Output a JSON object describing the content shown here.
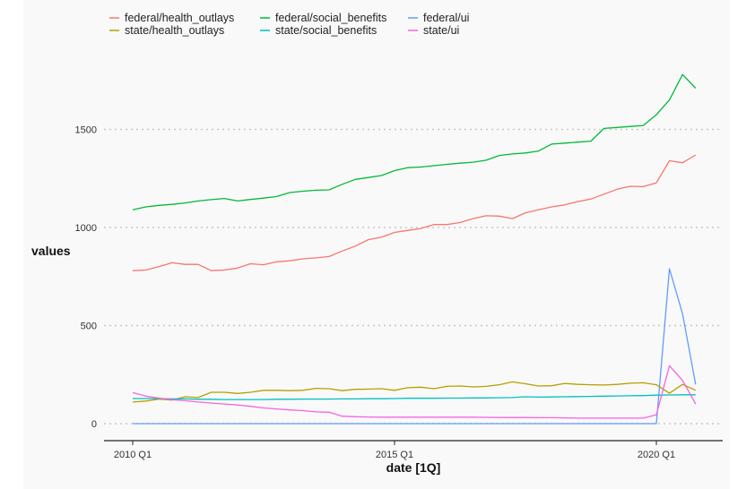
{
  "chart_data": {
    "type": "line",
    "title": "",
    "xlabel": "date [1Q]",
    "ylabel": "values",
    "x": [
      "2010 Q1",
      "2010 Q2",
      "2010 Q3",
      "2010 Q4",
      "2011 Q1",
      "2011 Q2",
      "2011 Q3",
      "2011 Q4",
      "2012 Q1",
      "2012 Q2",
      "2012 Q3",
      "2012 Q4",
      "2013 Q1",
      "2013 Q2",
      "2013 Q3",
      "2013 Q4",
      "2014 Q1",
      "2014 Q2",
      "2014 Q3",
      "2014 Q4",
      "2015 Q1",
      "2015 Q2",
      "2015 Q3",
      "2015 Q4",
      "2016 Q1",
      "2016 Q2",
      "2016 Q3",
      "2016 Q4",
      "2017 Q1",
      "2017 Q2",
      "2017 Q3",
      "2017 Q4",
      "2018 Q1",
      "2018 Q2",
      "2018 Q3",
      "2018 Q4",
      "2019 Q1",
      "2019 Q2",
      "2019 Q3",
      "2019 Q4",
      "2020 Q1",
      "2020 Q2",
      "2020 Q3",
      "2020 Q4"
    ],
    "x_ticks": [
      "2010 Q1",
      "2015 Q1",
      "2020 Q1"
    ],
    "y_ticks": [
      0,
      500,
      1000,
      1500
    ],
    "ylim": [
      -50,
      1800
    ],
    "grid": "horizontal dotted",
    "legend": "top-left",
    "series": [
      {
        "name": "federal/health_outlays",
        "color": "#F8766D",
        "values": [
          780,
          783,
          800,
          820,
          812,
          812,
          780,
          783,
          793,
          815,
          810,
          825,
          830,
          840,
          845,
          852,
          880,
          905,
          938,
          950,
          975,
          985,
          995,
          1015,
          1015,
          1025,
          1045,
          1060,
          1058,
          1045,
          1075,
          1090,
          1105,
          1115,
          1132,
          1145,
          1170,
          1195,
          1210,
          1208,
          1228,
          1340,
          1330,
          1370
        ]
      },
      {
        "name": "federal/social_benefits",
        "color": "#00BA38",
        "values": [
          1090,
          1105,
          1113,
          1118,
          1125,
          1135,
          1142,
          1148,
          1135,
          1143,
          1150,
          1158,
          1178,
          1185,
          1190,
          1192,
          1220,
          1245,
          1255,
          1265,
          1290,
          1305,
          1308,
          1315,
          1322,
          1328,
          1333,
          1343,
          1367,
          1375,
          1380,
          1390,
          1425,
          1430,
          1435,
          1440,
          1505,
          1510,
          1515,
          1520,
          1575,
          1650,
          1780,
          1710
        ]
      },
      {
        "name": "federal/ui",
        "color": "#619CFF",
        "values": [
          0,
          0,
          0,
          0,
          0,
          0,
          0,
          0,
          0,
          0,
          0,
          0,
          0,
          0,
          0,
          0,
          0,
          0,
          0,
          0,
          0,
          0,
          0,
          0,
          0,
          0,
          0,
          0,
          0,
          0,
          0,
          0,
          0,
          0,
          0,
          0,
          0,
          0,
          0,
          0,
          0,
          790,
          560,
          200
        ]
      },
      {
        "name": "state/health_outlays",
        "color": "#B79F00",
        "values": [
          110,
          115,
          125,
          120,
          137,
          133,
          160,
          160,
          154,
          160,
          170,
          170,
          168,
          170,
          180,
          178,
          168,
          175,
          176,
          178,
          170,
          183,
          186,
          178,
          190,
          192,
          187,
          190,
          198,
          213,
          203,
          192,
          193,
          205,
          200,
          198,
          197,
          200,
          206,
          208,
          198,
          155,
          200,
          170
        ]
      },
      {
        "name": "state/social_benefits",
        "color": "#00BFC4",
        "values": [
          128,
          128,
          128,
          126,
          126,
          124,
          124,
          123,
          123,
          123,
          123,
          124,
          124,
          125,
          125,
          125,
          126,
          126,
          127,
          127,
          128,
          129,
          129,
          129,
          130,
          130,
          131,
          131,
          132,
          133,
          137,
          135,
          136,
          137,
          138,
          139,
          140,
          141,
          142,
          143,
          145,
          146,
          147,
          147
        ]
      },
      {
        "name": "state/ui",
        "color": "#F564E3",
        "values": [
          158,
          140,
          130,
          122,
          117,
          110,
          105,
          100,
          95,
          88,
          80,
          75,
          70,
          66,
          60,
          58,
          38,
          35,
          34,
          33,
          33,
          33,
          33,
          33,
          33,
          33,
          33,
          32,
          31,
          31,
          31,
          30,
          30,
          29,
          28,
          28,
          28,
          28,
          28,
          28,
          45,
          295,
          220,
          100
        ]
      }
    ]
  }
}
